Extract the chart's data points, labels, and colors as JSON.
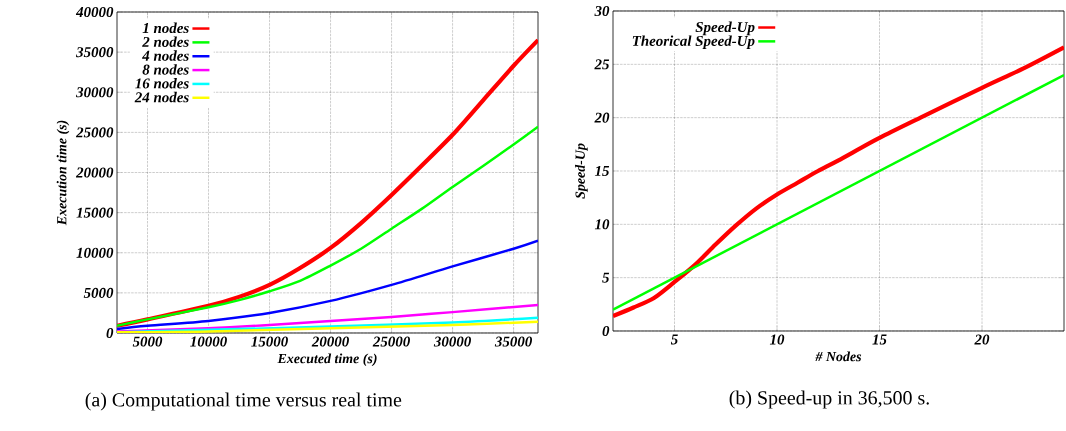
{
  "chart_data": [
    {
      "type": "line",
      "title": "(a) Computational time versus real time",
      "xlabel": "Executed time (s)",
      "ylabel": "Execution time (s)",
      "x": [
        2500,
        5000,
        10000,
        12500,
        15000,
        17500,
        20000,
        22500,
        25000,
        27500,
        30000,
        32500,
        35000,
        37000
      ],
      "series": [
        {
          "name": "1 nodes",
          "color": "#ff0000",
          "values": [
            900,
            1700,
            3400,
            4500,
            6000,
            8100,
            10600,
            13700,
            17200,
            20900,
            24700,
            29000,
            33300,
            36500
          ]
        },
        {
          "name": "2 nodes",
          "color": "#00ff00",
          "values": [
            900,
            1700,
            3200,
            4100,
            5200,
            6500,
            8400,
            10500,
            13000,
            15500,
            18200,
            20800,
            23500,
            25700
          ]
        },
        {
          "name": "4 nodes",
          "color": "#0000ff",
          "x": [
            2500,
            5000,
            10000,
            15000,
            20000,
            25000,
            30000,
            35000,
            37000
          ],
          "values": [
            500,
            900,
            1500,
            2500,
            4000,
            6000,
            8300,
            10500,
            11500
          ]
        },
        {
          "name": "8 nodes",
          "color": "#ff00ff",
          "x": [
            2500,
            10000,
            15000,
            20000,
            25000,
            30000,
            37000
          ],
          "values": [
            200,
            600,
            1000,
            1500,
            2000,
            2600,
            3500
          ]
        },
        {
          "name": "16 nodes",
          "color": "#00ffff",
          "x": [
            2500,
            10000,
            20000,
            30000,
            37000
          ],
          "values": [
            100,
            400,
            800,
            1300,
            1900
          ]
        },
        {
          "name": "24 nodes",
          "color": "#ffff00",
          "x": [
            2500,
            10000,
            20000,
            30000,
            37000
          ],
          "values": [
            100,
            200,
            600,
            1000,
            1400
          ]
        }
      ],
      "xlim": [
        2500,
        37000
      ],
      "ylim": [
        0,
        40000
      ],
      "xticks": [
        5000,
        10000,
        15000,
        20000,
        25000,
        30000,
        35000
      ],
      "yticks": [
        0,
        5000,
        10000,
        15000,
        20000,
        25000,
        30000,
        35000,
        40000
      ],
      "grid": true,
      "legend": "top left"
    },
    {
      "type": "line",
      "title": "(b) Speed-up in 36,500 s.",
      "xlabel": "# Nodes",
      "ylabel": "Speed-Up",
      "series": [
        {
          "name": "Speed-Up",
          "color": "#ff0000",
          "x": [
            2,
            3,
            4,
            5,
            6,
            7,
            8,
            9,
            10,
            11,
            12,
            13,
            15,
            17,
            20,
            22,
            24
          ],
          "values": [
            1.4,
            2.2,
            3.1,
            4.6,
            6.2,
            8.1,
            9.9,
            11.5,
            12.8,
            13.9,
            15.0,
            16.0,
            18.1,
            20.0,
            22.8,
            24.6,
            26.6
          ]
        },
        {
          "name": "Theorical Speed-Up",
          "color": "#00ff00",
          "x": [
            2,
            24
          ],
          "values": [
            2,
            24
          ]
        }
      ],
      "xlim": [
        2,
        24
      ],
      "ylim": [
        0,
        30
      ],
      "xticks": [
        5,
        10,
        15,
        20
      ],
      "yticks": [
        0,
        5,
        10,
        15,
        20,
        25,
        30
      ],
      "grid": true,
      "legend": "top left"
    }
  ]
}
